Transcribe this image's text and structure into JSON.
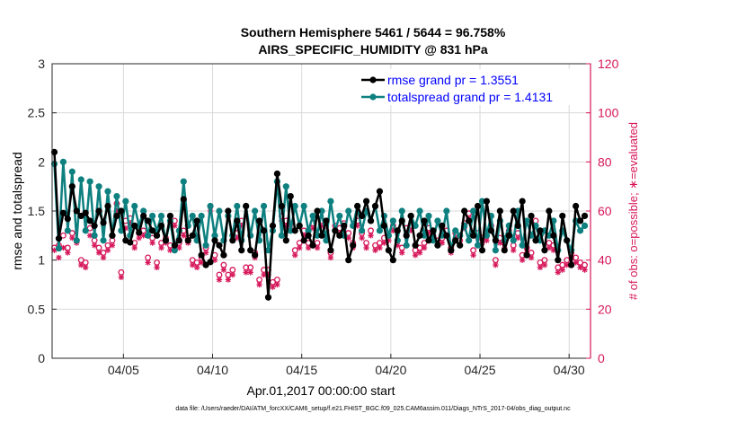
{
  "figure": {
    "title_line1": "Southern Hemisphere 5461 / 5644 = 96.758%",
    "title_line2": "AIRS_SPECIFIC_HUMIDITY @ 831 hPa",
    "footer": "data file: /Users/raeder/DAI/ATM_forcXX/CAM6_setup/f.e21.FHIST_BGC.f09_025.CAM6assim.011/Diags_NTrS_2017-04/obs_diag_output.nc"
  },
  "colors": {
    "rmse": "#000000",
    "spread": "#0e8080",
    "obs": "#d6175a"
  },
  "chart_data": {
    "type": "line",
    "title": "Southern Hemisphere 5461 / 5644 = 96.758%",
    "subtitle": "AIRS_SPECIFIC_HUMIDITY @ 831 hPa",
    "xlabel": "Apr.01,2017 00:00:00 start",
    "ylabel": "rmse and totalspread",
    "y2label": "# of obs: o=possible; ∗=evaluated",
    "xlim": [
      1.0,
      31.2
    ],
    "ylim": [
      0,
      3
    ],
    "y2lim": [
      0,
      120
    ],
    "xticks": [
      5,
      10,
      15,
      20,
      25,
      30
    ],
    "xticklabels": [
      "04/05",
      "04/10",
      "04/15",
      "04/20",
      "04/25",
      "04/30"
    ],
    "yticks": [
      "0",
      "0.5",
      "1",
      "1.5",
      "2",
      "2.5",
      "3"
    ],
    "y2ticks": [
      "0",
      "20",
      "40",
      "60",
      "80",
      "100",
      "120"
    ],
    "legend_position": "top-right",
    "grid": true,
    "x": [
      1.125,
      1.375,
      1.625,
      1.875,
      2.125,
      2.375,
      2.625,
      2.875,
      3.125,
      3.375,
      3.625,
      3.875,
      4.125,
      4.375,
      4.625,
      4.875,
      5.125,
      5.375,
      5.625,
      5.875,
      6.125,
      6.375,
      6.625,
      6.875,
      7.125,
      7.375,
      7.625,
      7.875,
      8.125,
      8.375,
      8.625,
      8.875,
      9.125,
      9.375,
      9.625,
      9.875,
      10.125,
      10.375,
      10.625,
      10.875,
      11.125,
      11.375,
      11.625,
      11.875,
      12.125,
      12.375,
      12.625,
      12.875,
      13.125,
      13.375,
      13.625,
      13.875,
      14.125,
      14.375,
      14.625,
      14.875,
      15.125,
      15.375,
      15.625,
      15.875,
      16.125,
      16.375,
      16.625,
      16.875,
      17.125,
      17.375,
      17.625,
      17.875,
      18.125,
      18.375,
      18.625,
      18.875,
      19.125,
      19.375,
      19.625,
      19.875,
      20.125,
      20.375,
      20.625,
      20.875,
      21.125,
      21.375,
      21.625,
      21.875,
      22.125,
      22.375,
      22.625,
      22.875,
      23.125,
      23.375,
      23.625,
      23.875,
      24.125,
      24.375,
      24.625,
      24.875,
      25.125,
      25.375,
      25.625,
      25.875,
      26.125,
      26.375,
      26.625,
      26.875,
      27.125,
      27.375,
      27.625,
      27.875,
      28.125,
      28.375,
      28.625,
      28.875,
      29.125,
      29.375,
      29.625,
      29.875,
      30.125,
      30.375,
      30.625,
      30.875
    ],
    "series": [
      {
        "name": "rmse grand pr = 1.3551",
        "axis": "left",
        "values": [
          2.1,
          1.22,
          1.48,
          1.42,
          1.75,
          1.5,
          1.45,
          1.48,
          1.4,
          1.35,
          1.5,
          1.38,
          1.55,
          1.25,
          1.45,
          1.5,
          1.2,
          1.18,
          1.35,
          1.28,
          1.45,
          1.4,
          1.3,
          1.25,
          1.35,
          1.2,
          1.45,
          1.15,
          1.2,
          1.62,
          1.2,
          1.25,
          1.4,
          1.05,
          0.95,
          0.98,
          1.2,
          1.15,
          1.05,
          1.5,
          1.2,
          1.4,
          1.1,
          1.55,
          1.1,
          1.05,
          1.4,
          1.3,
          0.62,
          1.35,
          1.88,
          1.55,
          1.2,
          1.65,
          1.3,
          1.35,
          1.2,
          1.25,
          1.15,
          1.5,
          1.25,
          1.4,
          1.1,
          1.3,
          1.25,
          1.35,
          1.0,
          1.15,
          1.55,
          1.45,
          1.6,
          1.4,
          1.55,
          1.7,
          1.35,
          1.1,
          1.0,
          1.3,
          1.4,
          1.25,
          1.45,
          1.15,
          1.25,
          1.4,
          1.2,
          1.3,
          1.15,
          1.35,
          1.25,
          1.1,
          1.2,
          1.15,
          1.5,
          1.4,
          1.25,
          1.55,
          1.1,
          1.6,
          1.3,
          1.2,
          1.5,
          1.1,
          1.25,
          1.5,
          1.35,
          1.6,
          1.05,
          1.45,
          1.2,
          1.3,
          1.1,
          1.5,
          1.25,
          1.0,
          1.45,
          1.2,
          0.95,
          1.55,
          1.4,
          1.45
        ]
      },
      {
        "name": "totalspread grand pr = 1.4131",
        "axis": "left",
        "values": [
          1.98,
          1.12,
          2.0,
          1.3,
          1.9,
          1.2,
          1.82,
          1.3,
          1.8,
          1.25,
          1.75,
          1.2,
          1.7,
          1.25,
          1.65,
          1.3,
          1.6,
          1.25,
          1.55,
          1.35,
          1.5,
          1.25,
          1.45,
          1.3,
          1.45,
          1.2,
          1.4,
          1.1,
          1.3,
          1.8,
          1.35,
          1.45,
          1.2,
          1.45,
          1.15,
          1.55,
          1.25,
          1.5,
          1.2,
          1.45,
          1.25,
          1.55,
          1.2,
          1.55,
          1.25,
          1.5,
          1.2,
          1.55,
          1.1,
          1.3,
          1.8,
          1.25,
          1.75,
          1.3,
          1.55,
          1.35,
          1.55,
          1.3,
          1.45,
          1.25,
          1.5,
          1.2,
          1.6,
          1.3,
          1.45,
          1.25,
          1.5,
          1.35,
          1.55,
          1.3,
          1.5,
          1.4,
          1.55,
          1.3,
          1.45,
          1.25,
          1.4,
          1.2,
          1.5,
          1.15,
          1.45,
          1.35,
          1.5,
          1.25,
          1.45,
          1.2,
          1.4,
          1.25,
          1.5,
          1.1,
          1.3,
          1.25,
          1.35,
          1.2,
          1.5,
          1.15,
          1.6,
          1.25,
          1.45,
          1.1,
          1.4,
          1.2,
          1.35,
          1.2,
          1.5,
          1.15,
          1.4,
          1.25,
          1.35,
          1.2,
          1.3,
          1.25,
          1.4,
          1.1,
          1.3,
          1.2,
          1.1,
          1.4,
          1.3,
          1.35
        ]
      },
      {
        "name": "# of obs possible",
        "axis": "right",
        "marker": "o",
        "values": [
          45,
          46,
          50,
          45,
          51,
          48,
          40,
          39,
          53,
          48,
          45,
          43,
          46,
          48,
          63,
          35,
          56,
          57,
          47,
          51,
          52,
          41,
          49,
          39,
          47,
          49,
          46,
          56,
          47,
          52,
          49,
          40,
          39,
          41,
          45,
          62,
          42,
          34,
          38,
          34,
          36,
          51,
          56,
          37,
          37,
          43,
          32,
          36,
          36,
          31,
          32,
          58,
          56,
          55,
          44,
          47,
          52,
          47,
          55,
          47,
          56,
          52,
          43,
          54,
          53,
          55,
          51,
          47,
          56,
          51,
          47,
          52,
          46,
          47,
          49,
          50,
          54,
          48,
          45,
          53,
          54,
          44,
          45,
          47,
          53,
          50,
          48,
          49,
          52,
          45,
          51,
          48,
          55,
          59,
          44,
          51,
          49,
          50,
          54,
          40,
          49,
          47,
          52,
          46,
          51,
          42,
          45,
          43,
          56,
          39,
          40,
          47,
          46,
          37,
          38,
          40,
          43,
          41,
          39,
          38
        ]
      },
      {
        "name": "# of obs evaluated",
        "axis": "right",
        "marker": "*",
        "values": [
          44,
          41,
          45,
          43,
          49,
          47,
          38,
          37,
          50,
          46,
          43,
          41,
          44,
          46,
          60,
          33,
          53,
          55,
          45,
          49,
          50,
          39,
          47,
          37,
          45,
          47,
          44,
          54,
          45,
          50,
          47,
          38,
          37,
          39,
          43,
          60,
          40,
          32,
          36,
          32,
          34,
          49,
          54,
          35,
          35,
          41,
          30,
          34,
          34,
          29,
          30,
          56,
          54,
          53,
          42,
          45,
          50,
          45,
          53,
          45,
          54,
          50,
          41,
          52,
          51,
          53,
          49,
          45,
          54,
          49,
          45,
          50,
          44,
          45,
          47,
          48,
          52,
          46,
          43,
          51,
          52,
          42,
          43,
          45,
          51,
          48,
          46,
          47,
          50,
          43,
          49,
          46,
          53,
          57,
          42,
          49,
          47,
          48,
          52,
          38,
          47,
          45,
          50,
          44,
          49,
          40,
          43,
          41,
          54,
          37,
          38,
          45,
          44,
          35,
          36,
          38,
          41,
          39,
          37,
          36
        ]
      }
    ]
  }
}
